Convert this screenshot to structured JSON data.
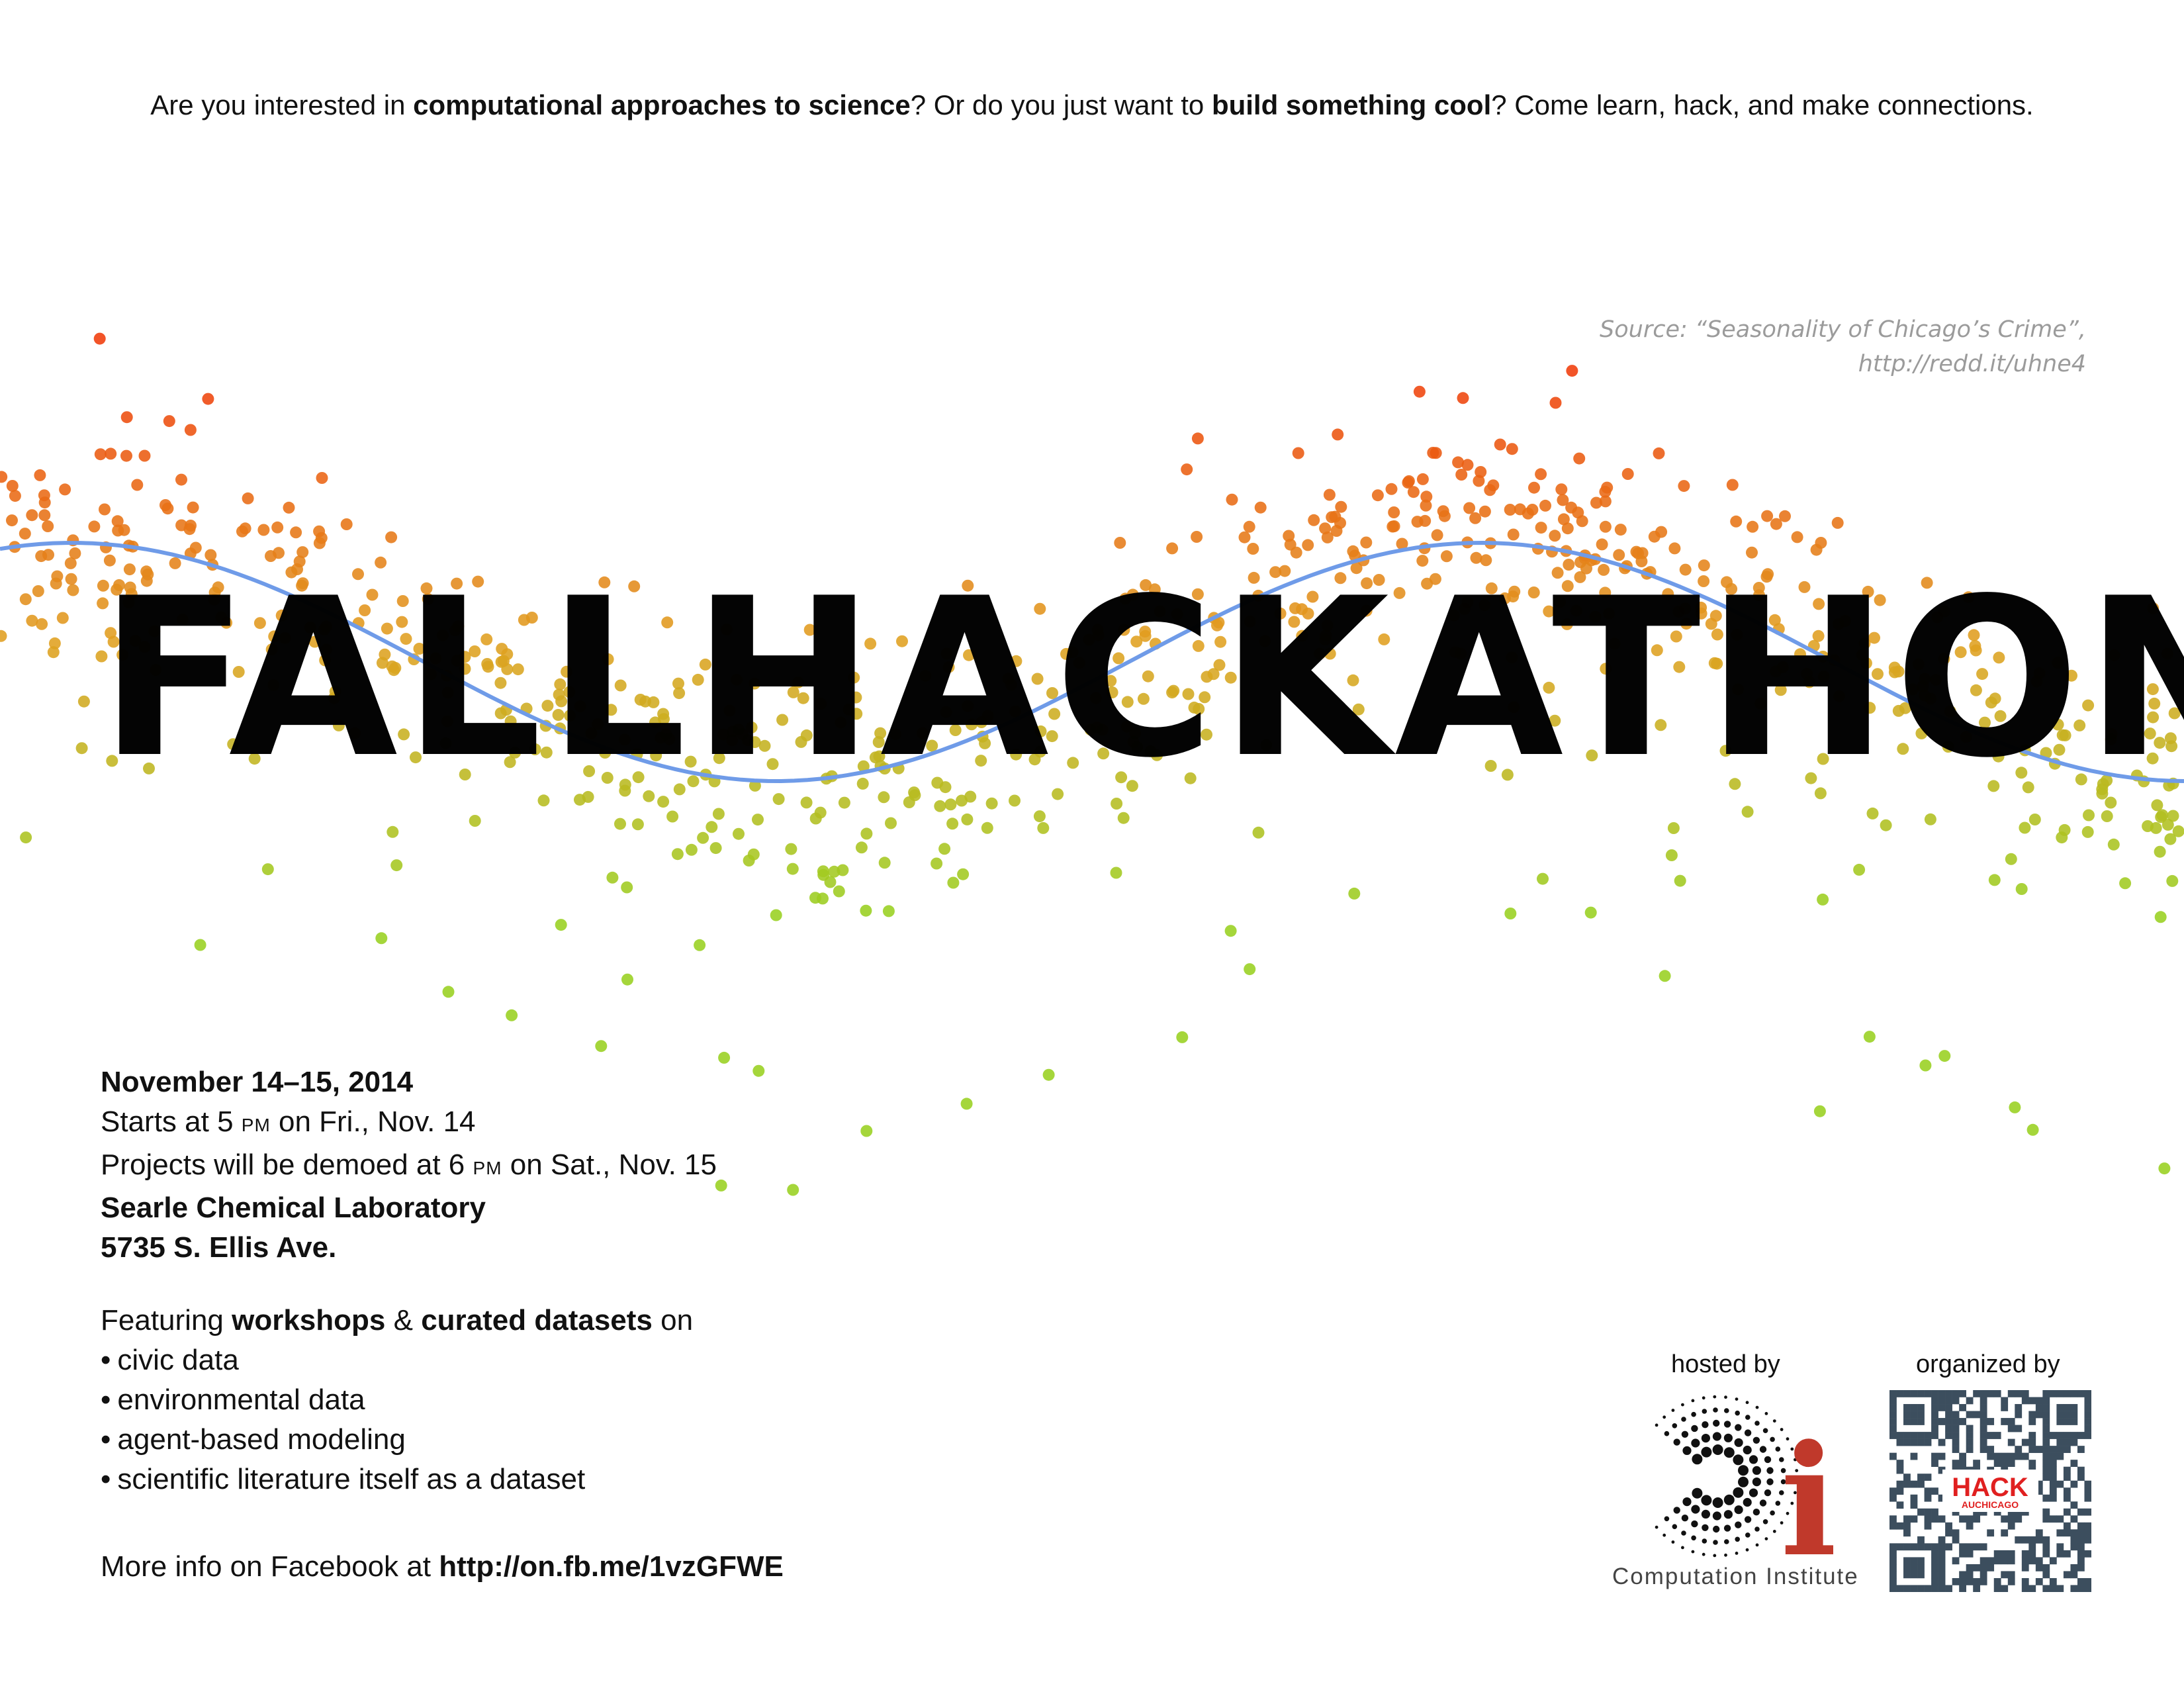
{
  "tagline": {
    "part1": "Are you interested in ",
    "bold1": "computational approaches to science",
    "part2": "? Or do you just want to ",
    "bold2": "build something cool",
    "part3": "? Come learn, hack, and make connections."
  },
  "source": {
    "line1": "Source: “Seasonality of Chicago’s Crime”,",
    "line2": "http://redd.it/uhne4"
  },
  "title": {
    "word1": "FALL",
    "word2": "HACKATHON"
  },
  "event": {
    "dates": "November 14–15, 2014",
    "start_pre": "Starts at 5 ",
    "start_pm": "PM",
    "start_post": " on Fri., Nov. 14",
    "demo_pre": "Projects will be demoed at 6 ",
    "demo_pm": "PM",
    "demo_post": " on Sat., Nov. 15",
    "venue": "Searle Chemical Laboratory",
    "address": "5735 S. Ellis Ave."
  },
  "featuring": {
    "pre": "Featuring ",
    "bold1": "workshops",
    "mid": " & ",
    "bold2": "curated datasets",
    "post": " on",
    "items": [
      "civic data",
      "environmental data",
      "agent-based modeling",
      "scientific literature itself as a dataset"
    ]
  },
  "more_info": {
    "pre": "More info on Facebook at ",
    "link": "http://on.fb.me/1vzGFWE"
  },
  "hosted_by": {
    "label": "hosted by",
    "org_name": "Computation Institute",
    "logo_letter": "i"
  },
  "organized_by": {
    "label": "organized by",
    "qr_text1": "HACK",
    "qr_text2": "AUCHICAGO"
  },
  "colors": {
    "high": "#f03c0a",
    "mid": "#e0a020",
    "low": "#98d020",
    "trend": "#6f9be8",
    "ci_red": "#c0392b"
  }
}
